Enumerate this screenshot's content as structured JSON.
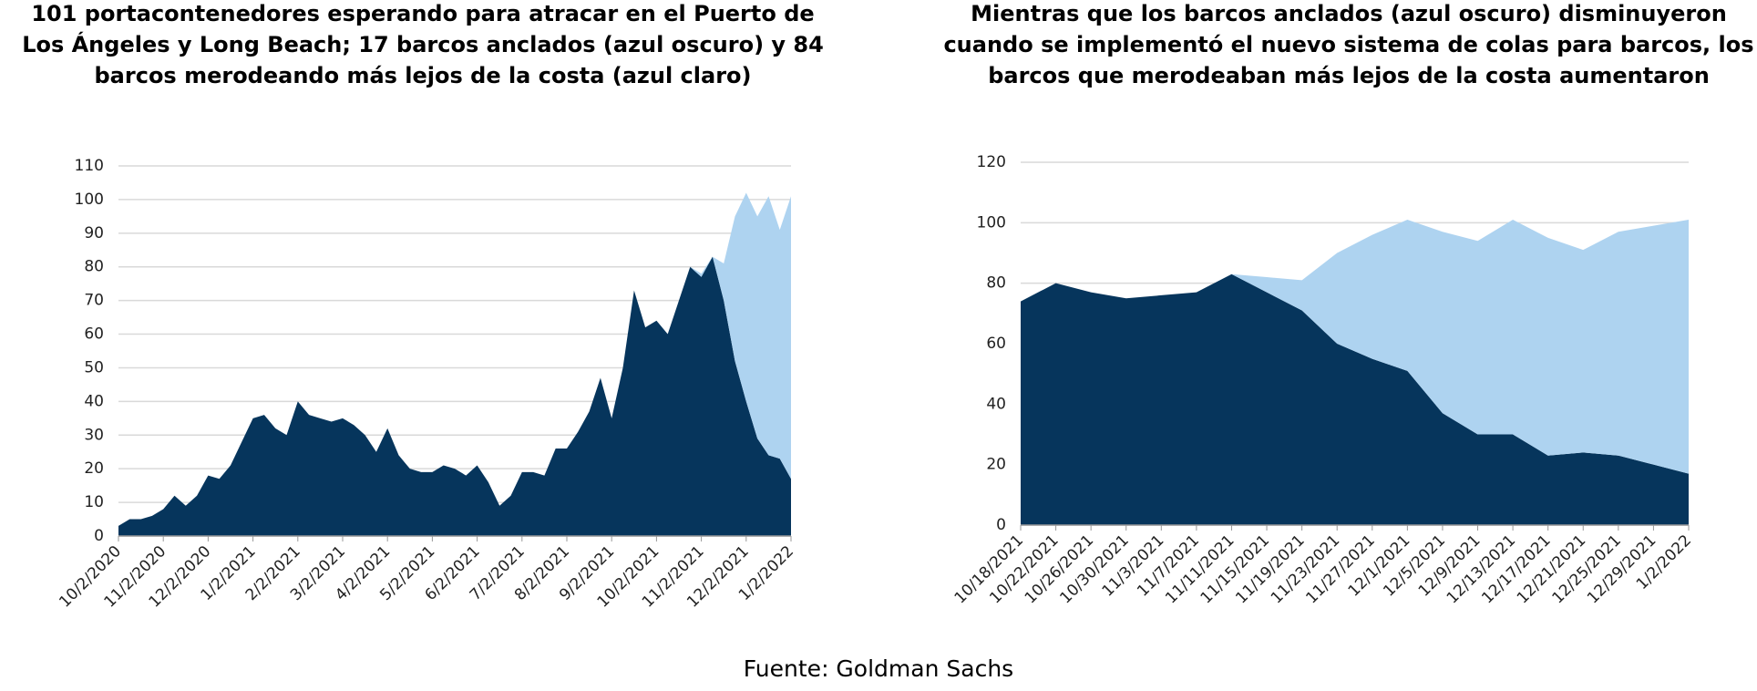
{
  "chart_data": [
    {
      "type": "stacked_area",
      "title": [
        "101 portacontenedores esperando para atracar en el Puerto de",
        "Los Ángeles y Long Beach; 17 barcos anclados (azul oscuro) y 84",
        "barcos merodeando más lejos de la costa (azul claro)"
      ],
      "categories": [
        "10/2/2020",
        null,
        null,
        null,
        "11/2/2020",
        null,
        null,
        null,
        "12/2/2020",
        null,
        null,
        null,
        "1/2/2021",
        null,
        null,
        null,
        "2/2/2021",
        null,
        null,
        null,
        "3/2/2021",
        null,
        null,
        null,
        "4/2/2021",
        null,
        null,
        null,
        "5/2/2021",
        null,
        null,
        null,
        "6/2/2021",
        null,
        null,
        null,
        "7/2/2021",
        null,
        null,
        null,
        "8/2/2021",
        null,
        null,
        null,
        "9/2/2021",
        null,
        null,
        null,
        "10/2/2021",
        null,
        null,
        null,
        "11/2/2021",
        null,
        null,
        null,
        "12/2/2021",
        null,
        null,
        null,
        "1/2/2022"
      ],
      "series": [
        {
          "color": "#06355c",
          "values": [
            3,
            5,
            5,
            6,
            8,
            12,
            9,
            12,
            18,
            17,
            21,
            28,
            35,
            36,
            32,
            30,
            40,
            36,
            35,
            34,
            35,
            33,
            30,
            25,
            32,
            24,
            20,
            19,
            19,
            21,
            20,
            18,
            21,
            16,
            9,
            12,
            19,
            19,
            18,
            26,
            26,
            31,
            37,
            47,
            35,
            50,
            73,
            62,
            64,
            60,
            70,
            80,
            77,
            83,
            70,
            52,
            40,
            29,
            24,
            23,
            17
          ]
        },
        {
          "color": "#aed3f0",
          "values": [
            0,
            0,
            0,
            0,
            0,
            0,
            0,
            0,
            0,
            0,
            0,
            0,
            0,
            0,
            0,
            0,
            0,
            0,
            0,
            0,
            0,
            0,
            0,
            0,
            0,
            0,
            0,
            0,
            0,
            0,
            0,
            0,
            0,
            0,
            0,
            0,
            0,
            0,
            0,
            0,
            0,
            0,
            0,
            0,
            0,
            0,
            0,
            0,
            0,
            0,
            0,
            0,
            1,
            0,
            11,
            43,
            62,
            66,
            77,
            68,
            84
          ]
        }
      ],
      "ylim": [
        0,
        110
      ],
      "yticks": [
        0,
        10,
        20,
        30,
        40,
        50,
        60,
        70,
        80,
        90,
        100,
        110
      ],
      "grid": true
    },
    {
      "type": "stacked_area",
      "title": [
        "Mientras que los barcos anclados (azul oscuro) disminuyeron",
        "cuando se implementó el nuevo sistema de colas para barcos, los",
        "barcos que merodeaban más lejos de la costa aumentaron"
      ],
      "categories": [
        "10/18/2021",
        "10/22/2021",
        "10/26/2021",
        "10/30/2021",
        "11/3/2021",
        "11/7/2021",
        "11/11/2021",
        "11/15/2021",
        "11/19/2021",
        "11/23/2021",
        "11/27/2021",
        "12/1/2021",
        "12/5/2021",
        "12/9/2021",
        "12/13/2021",
        "12/17/2021",
        "12/21/2021",
        "12/25/2021",
        "12/29/2021",
        "1/2/2022"
      ],
      "series": [
        {
          "color": "#06355c",
          "values": [
            74,
            80,
            77,
            75,
            76,
            77,
            83,
            77,
            71,
            60,
            55,
            51,
            37,
            30,
            30,
            23,
            24,
            23,
            20,
            17
          ]
        },
        {
          "color": "#aed3f0",
          "values": [
            0,
            0,
            0,
            0,
            0,
            0,
            0,
            5,
            10,
            30,
            41,
            50,
            60,
            64,
            71,
            72,
            67,
            74,
            79,
            84
          ]
        }
      ],
      "ylim": [
        0,
        120
      ],
      "yticks": [
        0,
        20,
        40,
        60,
        80,
        100,
        120
      ],
      "grid": true
    }
  ],
  "source": "Fuente: Goldman Sachs"
}
